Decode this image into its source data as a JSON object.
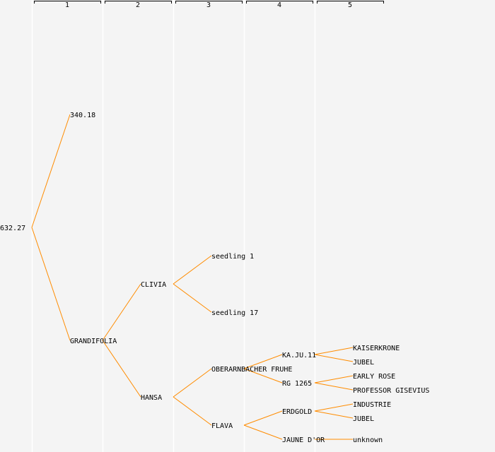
{
  "colors": {
    "background": "#f4f4f4",
    "edge": "#ff8c00",
    "column_divider": "#ffffff"
  },
  "columns": [
    "1",
    "2",
    "3",
    "4",
    "5"
  ],
  "tree": {
    "label": "632.27",
    "children": [
      {
        "label": "340.18",
        "children": []
      },
      {
        "label": "GRANDIFOLIA",
        "children": [
          {
            "label": "CLIVIA",
            "children": [
              {
                "label": "seedling 1",
                "children": []
              },
              {
                "label": "seedling 17",
                "children": []
              }
            ]
          },
          {
            "label": "HANSA",
            "children": [
              {
                "label": "OBERARNBACHER FRUHE",
                "children": [
                  {
                    "label": "KA.JU.11",
                    "children": [
                      {
                        "label": "KAISERKRONE",
                        "children": []
                      },
                      {
                        "label": "JUBEL",
                        "children": []
                      }
                    ]
                  },
                  {
                    "label": "RG 1265",
                    "children": [
                      {
                        "label": "EARLY ROSE",
                        "children": []
                      },
                      {
                        "label": "PROFESSOR GISEVIUS",
                        "children": []
                      }
                    ]
                  }
                ]
              },
              {
                "label": "FLAVA",
                "children": [
                  {
                    "label": "ERDGOLD",
                    "children": [
                      {
                        "label": "INDUSTRIE",
                        "children": []
                      },
                      {
                        "label": "JUBEL",
                        "children": []
                      }
                    ]
                  },
                  {
                    "label": "JAUNE D'OR",
                    "children": [
                      {
                        "label": "unknown",
                        "children": []
                      }
                    ]
                  }
                ]
              }
            ]
          }
        ]
      }
    ]
  }
}
